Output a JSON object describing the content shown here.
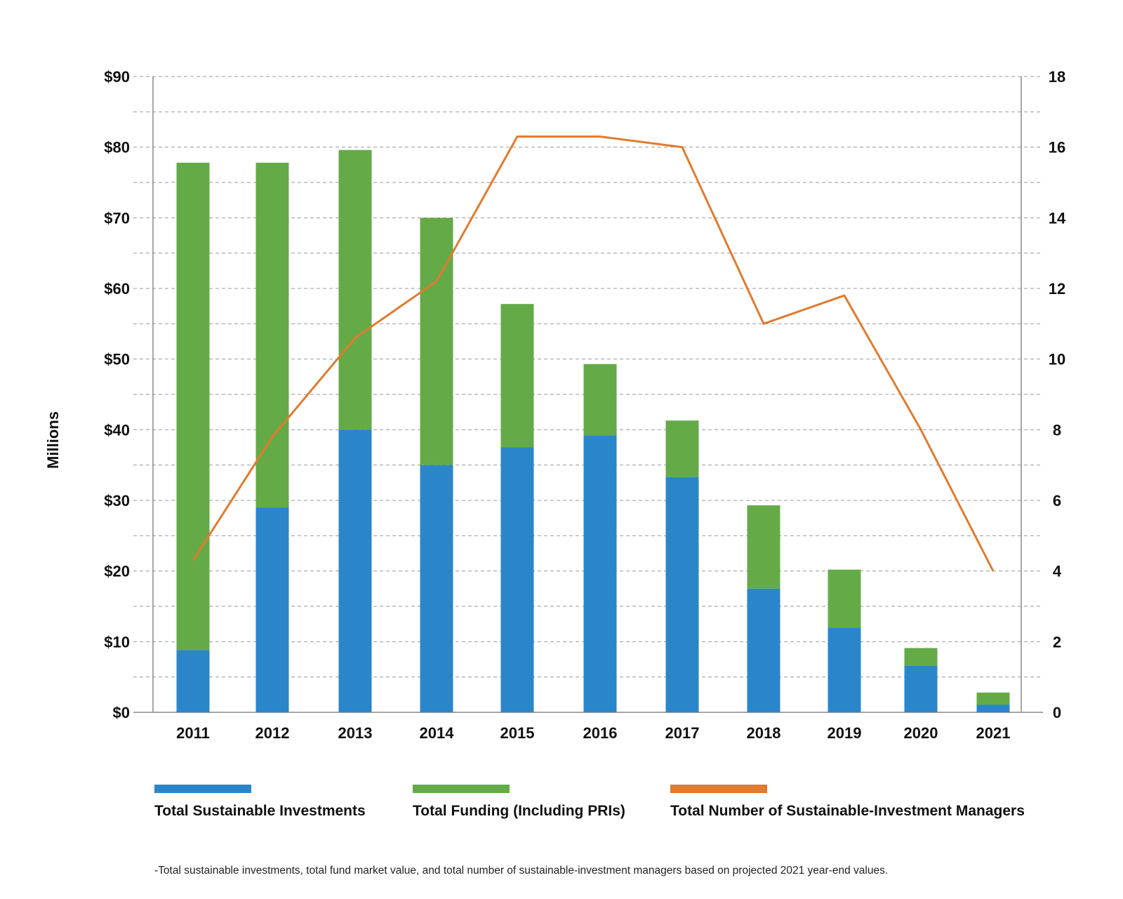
{
  "chart_data": {
    "type": "bar",
    "categories": [
      "2011",
      "2012",
      "2013",
      "2014",
      "2015",
      "2016",
      "2017",
      "2018",
      "2019",
      "2020",
      "2021"
    ],
    "series": [
      {
        "name": "Total Sustainable Investments",
        "kind": "stacked-bar",
        "axis": "left",
        "color": "#2b86c9",
        "values": [
          8.8,
          29,
          40,
          35,
          37.5,
          39.2,
          33.3,
          17.5,
          12,
          6.6,
          1.1
        ]
      },
      {
        "name": "Total Funding (Including PRIs)",
        "kind": "stacked-bar-total",
        "axis": "left",
        "color": "#64ab47",
        "values": [
          77.8,
          77.8,
          79.6,
          70,
          57.8,
          49.3,
          41.3,
          29.3,
          20.2,
          9.1,
          2.8
        ]
      },
      {
        "name": "Total Number of Sustainable-Investment Managers",
        "kind": "line",
        "axis": "right",
        "color": "#e07b2f",
        "values": [
          4.3,
          7.8,
          10.6,
          12.2,
          16.3,
          16.3,
          16,
          11,
          11.8,
          8,
          4
        ]
      }
    ],
    "ylabel": "Millions",
    "y_left": {
      "range": [
        0,
        90
      ],
      "ticks": [
        "$0",
        "$10",
        "$20",
        "$30",
        "$40",
        "$50",
        "$60",
        "$70",
        "$80",
        "$90"
      ]
    },
    "y_right": {
      "range": [
        0,
        18
      ],
      "ticks": [
        "0",
        "2",
        "4",
        "6",
        "8",
        "10",
        "12",
        "14",
        "16",
        "18"
      ]
    },
    "grid": "dashed horizontal",
    "legend_position": "bottom",
    "footnote": "-Total sustainable investments, total fund market value, and total number of sustainable-investment managers based on projected 2021 year-end values."
  }
}
